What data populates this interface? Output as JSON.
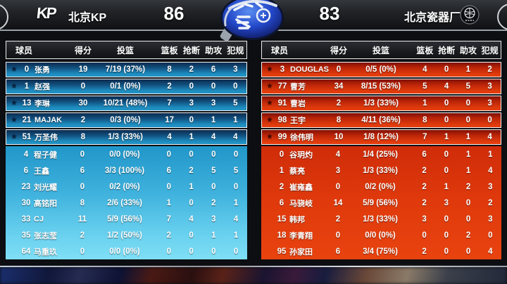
{
  "scoreboard": {
    "left_team": {
      "logo_text": "KP",
      "name": "北京KP",
      "score": "86"
    },
    "right_team": {
      "name": "北京瓷器厂",
      "score": "83"
    }
  },
  "table_columns": [
    "球员",
    "得分",
    "投篮",
    "篮板",
    "抢断",
    "助攻",
    "犯规"
  ],
  "left_table": {
    "team": "北京KP",
    "rows": [
      {
        "star": true,
        "num": "0",
        "name": "张勇",
        "pts": "19",
        "fg": "7/19 (37%)",
        "reb": "8",
        "stl": "2",
        "ast": "6",
        "pf": "3"
      },
      {
        "star": true,
        "num": "1",
        "name": "赵强",
        "pts": "0",
        "fg": "0/1 (0%)",
        "reb": "2",
        "stl": "0",
        "ast": "0",
        "pf": "0"
      },
      {
        "star": true,
        "num": "13",
        "name": "李琳",
        "pts": "30",
        "fg": "10/21 (48%)",
        "reb": "7",
        "stl": "3",
        "ast": "3",
        "pf": "5"
      },
      {
        "star": true,
        "num": "21",
        "name": "MAJAK",
        "pts": "2",
        "fg": "0/3 (0%)",
        "reb": "17",
        "stl": "0",
        "ast": "1",
        "pf": "1"
      },
      {
        "star": true,
        "num": "51",
        "name": "万圣伟",
        "pts": "8",
        "fg": "1/3 (33%)",
        "reb": "4",
        "stl": "1",
        "ast": "4",
        "pf": "4"
      },
      {
        "star": false,
        "num": "4",
        "name": "程子健",
        "pts": "0",
        "fg": "0/0 (0%)",
        "reb": "0",
        "stl": "0",
        "ast": "0",
        "pf": "0"
      },
      {
        "star": false,
        "num": "6",
        "name": "王鑫",
        "pts": "6",
        "fg": "3/3 (100%)",
        "reb": "6",
        "stl": "2",
        "ast": "5",
        "pf": "5"
      },
      {
        "star": false,
        "num": "23",
        "name": "刘光耀",
        "pts": "0",
        "fg": "0/2 (0%)",
        "reb": "0",
        "stl": "1",
        "ast": "0",
        "pf": "0"
      },
      {
        "star": false,
        "num": "30",
        "name": "高铭阳",
        "pts": "8",
        "fg": "2/6 (33%)",
        "reb": "1",
        "stl": "0",
        "ast": "2",
        "pf": "1"
      },
      {
        "star": false,
        "num": "33",
        "name": "CJ",
        "pts": "11",
        "fg": "5/9 (56%)",
        "reb": "7",
        "stl": "4",
        "ast": "3",
        "pf": "4"
      },
      {
        "star": false,
        "num": "35",
        "name": "张志莹",
        "pts": "2",
        "fg": "1/2 (50%)",
        "reb": "2",
        "stl": "0",
        "ast": "1",
        "pf": "1"
      },
      {
        "star": false,
        "num": "64",
        "name": "马重玖",
        "pts": "0",
        "fg": "0/0 (0%)",
        "reb": "0",
        "stl": "0",
        "ast": "0",
        "pf": "0"
      }
    ]
  },
  "right_table": {
    "team": "北京瓷器厂",
    "rows": [
      {
        "star": true,
        "num": "3",
        "name": "DOUGLAS",
        "pts": "0",
        "fg": "0/5 (0%)",
        "reb": "4",
        "stl": "0",
        "ast": "1",
        "pf": "2"
      },
      {
        "star": true,
        "num": "77",
        "name": "曹芳",
        "pts": "34",
        "fg": "8/15 (53%)",
        "reb": "5",
        "stl": "4",
        "ast": "5",
        "pf": "3"
      },
      {
        "star": true,
        "num": "91",
        "name": "曹岩",
        "pts": "2",
        "fg": "1/3 (33%)",
        "reb": "1",
        "stl": "0",
        "ast": "0",
        "pf": "3"
      },
      {
        "star": true,
        "num": "98",
        "name": "王宇",
        "pts": "8",
        "fg": "4/11 (36%)",
        "reb": "8",
        "stl": "0",
        "ast": "0",
        "pf": "0"
      },
      {
        "star": true,
        "num": "99",
        "name": "徐伟明",
        "pts": "10",
        "fg": "1/8 (12%)",
        "reb": "7",
        "stl": "1",
        "ast": "1",
        "pf": "4"
      },
      {
        "star": false,
        "num": "0",
        "name": "谷玥灼",
        "pts": "4",
        "fg": "1/4 (25%)",
        "reb": "6",
        "stl": "0",
        "ast": "1",
        "pf": "1"
      },
      {
        "star": false,
        "num": "1",
        "name": "蔡亮",
        "pts": "3",
        "fg": "1/3 (33%)",
        "reb": "2",
        "stl": "0",
        "ast": "1",
        "pf": "4"
      },
      {
        "star": false,
        "num": "2",
        "name": "崔雍鑫",
        "pts": "0",
        "fg": "0/2 (0%)",
        "reb": "2",
        "stl": "1",
        "ast": "2",
        "pf": "3"
      },
      {
        "star": false,
        "num": "6",
        "name": "马骁岐",
        "pts": "14",
        "fg": "5/9 (56%)",
        "reb": "2",
        "stl": "3",
        "ast": "0",
        "pf": "2"
      },
      {
        "star": false,
        "num": "15",
        "name": "韩邦",
        "pts": "2",
        "fg": "1/3 (33%)",
        "reb": "3",
        "stl": "0",
        "ast": "0",
        "pf": "3"
      },
      {
        "star": false,
        "num": "18",
        "name": "李青翔",
        "pts": "0",
        "fg": "0/0 (0%)",
        "reb": "0",
        "stl": "0",
        "ast": "2",
        "pf": "0"
      },
      {
        "star": false,
        "num": "95",
        "name": "孙家田",
        "pts": "6",
        "fg": "3/4 (75%)",
        "reb": "2",
        "stl": "0",
        "ast": "0",
        "pf": "4"
      }
    ]
  },
  "colors": {
    "left_panel_top": "#2196c9",
    "left_panel_bottom": "#7fdff5",
    "left_star_row": "#11507f",
    "right_panel": "#e03a0c",
    "right_star_row": "#b92408",
    "header_bar": "#1d1f23",
    "metal_line": "#9ba1a8",
    "badge_blue": "#1d3fb8"
  }
}
